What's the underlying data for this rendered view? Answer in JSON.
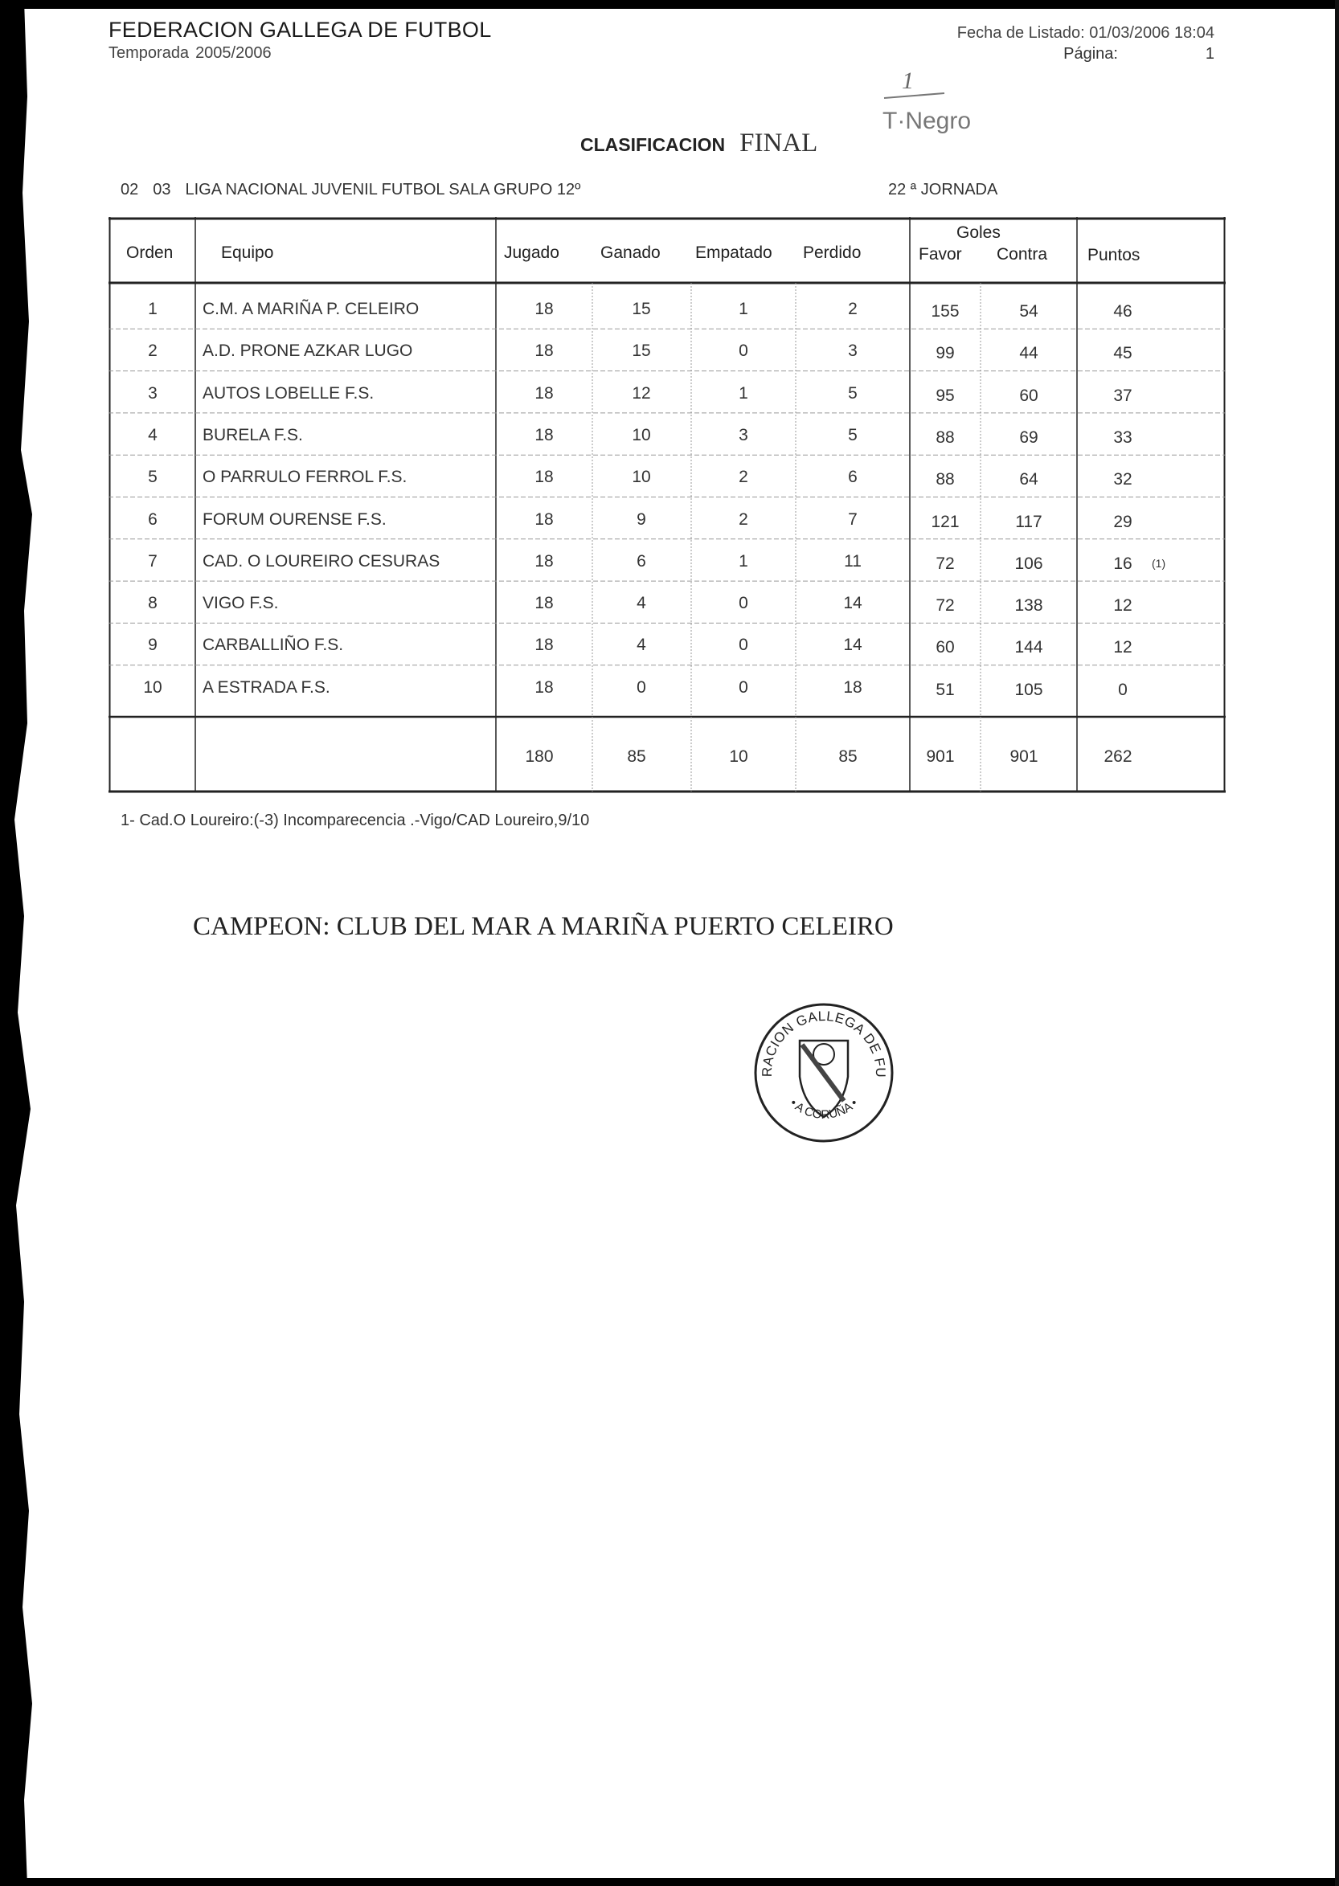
{
  "header": {
    "organization": "FEDERACION GALLEGA DE FUTBOL",
    "season_label": "Temporada",
    "season_value": "2005/2006",
    "listing_date": "Fecha de Listado: 01/03/2006 18:04",
    "page_label": "Página:",
    "page_value": "1"
  },
  "handwritten_note": {
    "line1": "1",
    "line2": "T·Negro"
  },
  "title": {
    "main": "CLASIFICACION",
    "handwritten": "FINAL"
  },
  "competition": {
    "code1": "02",
    "code2": "03",
    "name": "LIGA NACIONAL JUVENIL FUTBOL SALA GRUPO 12º",
    "round": "22 ª JORNADA"
  },
  "table": {
    "headers": {
      "orden": "Orden",
      "equipo": "Equipo",
      "jugado": "Jugado",
      "ganado": "Ganado",
      "empatado": "Empatado",
      "perdido": "Perdido",
      "goles": "Goles",
      "favor": "Favor",
      "contra": "Contra",
      "puntos": "Puntos"
    },
    "rows": [
      {
        "orden": "1",
        "equipo": "C.M. A MARIÑA P. CELEIRO",
        "jugado": "18",
        "ganado": "15",
        "empatado": "1",
        "perdido": "2",
        "favor": "155",
        "contra": "54",
        "puntos": "46",
        "note": ""
      },
      {
        "orden": "2",
        "equipo": "A.D. PRONE AZKAR LUGO",
        "jugado": "18",
        "ganado": "15",
        "empatado": "0",
        "perdido": "3",
        "favor": "99",
        "contra": "44",
        "puntos": "45",
        "note": ""
      },
      {
        "orden": "3",
        "equipo": "AUTOS LOBELLE F.S.",
        "jugado": "18",
        "ganado": "12",
        "empatado": "1",
        "perdido": "5",
        "favor": "95",
        "contra": "60",
        "puntos": "37",
        "note": ""
      },
      {
        "orden": "4",
        "equipo": "BURELA F.S.",
        "jugado": "18",
        "ganado": "10",
        "empatado": "3",
        "perdido": "5",
        "favor": "88",
        "contra": "69",
        "puntos": "33",
        "note": ""
      },
      {
        "orden": "5",
        "equipo": "O PARRULO FERROL F.S.",
        "jugado": "18",
        "ganado": "10",
        "empatado": "2",
        "perdido": "6",
        "favor": "88",
        "contra": "64",
        "puntos": "32",
        "note": ""
      },
      {
        "orden": "6",
        "equipo": "FORUM OURENSE F.S.",
        "jugado": "18",
        "ganado": "9",
        "empatado": "2",
        "perdido": "7",
        "favor": "121",
        "contra": "117",
        "puntos": "29",
        "note": ""
      },
      {
        "orden": "7",
        "equipo": "CAD. O LOUREIRO CESURAS",
        "jugado": "18",
        "ganado": "6",
        "empatado": "1",
        "perdido": "11",
        "favor": "72",
        "contra": "106",
        "puntos": "16",
        "note": "(1)"
      },
      {
        "orden": "8",
        "equipo": "VIGO F.S.",
        "jugado": "18",
        "ganado": "4",
        "empatado": "0",
        "perdido": "14",
        "favor": "72",
        "contra": "138",
        "puntos": "12",
        "note": ""
      },
      {
        "orden": "9",
        "equipo": "CARBALLIÑO F.S.",
        "jugado": "18",
        "ganado": "4",
        "empatado": "0",
        "perdido": "14",
        "favor": "60",
        "contra": "144",
        "puntos": "12",
        "note": ""
      },
      {
        "orden": "10",
        "equipo": "A ESTRADA F.S.",
        "jugado": "18",
        "ganado": "0",
        "empatado": "0",
        "perdido": "18",
        "favor": "51",
        "contra": "105",
        "puntos": "0",
        "note": ""
      }
    ],
    "totals": {
      "jugado": "180",
      "ganado": "85",
      "empatado": "10",
      "perdido": "85",
      "favor": "901",
      "contra": "901",
      "puntos": "262"
    }
  },
  "footnote": "1- Cad.O Loureiro:(-3) Incomparecencia .-Vigo/CAD Loureiro,9/10",
  "champion": "CAMPEON: CLUB DEL MAR A MARIÑA PUERTO CELEIRO",
  "stamp": {
    "top_text": "FEDERACION GALLEGA DE FUTBOL",
    "bottom_text": "A CORUÑA"
  }
}
